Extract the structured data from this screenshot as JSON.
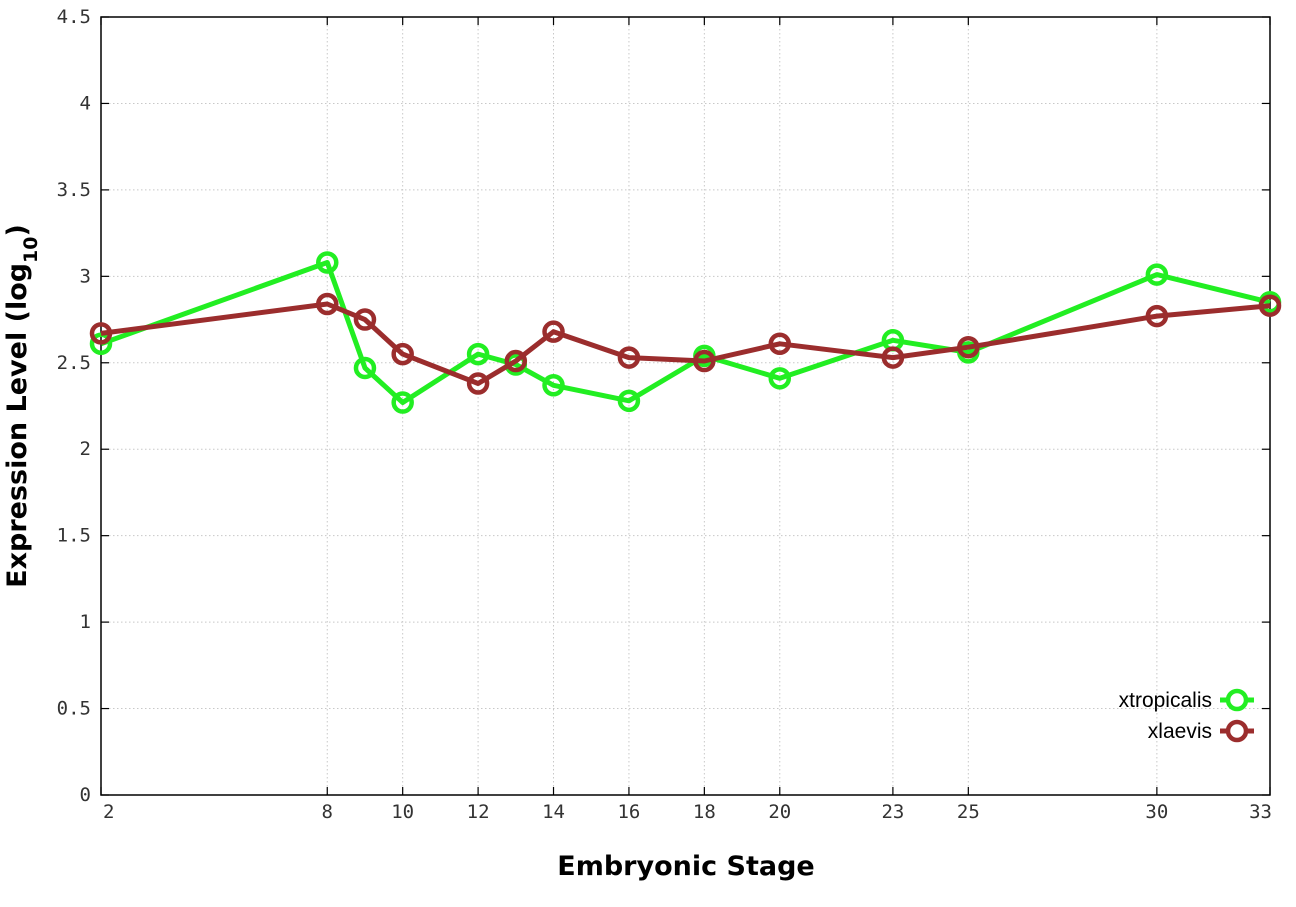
{
  "chart_data": {
    "type": "line",
    "x_ticks": [
      2,
      8,
      10,
      12,
      14,
      16,
      18,
      20,
      23,
      25,
      30,
      33
    ],
    "y_ticks": [
      "0",
      "0.5",
      "1",
      "1.5",
      "2",
      "2.5",
      "3",
      "3.5",
      "4",
      "4.5"
    ],
    "xlim": [
      2,
      33
    ],
    "ylim": [
      0,
      4.5
    ],
    "xlabel": "Embryonic Stage",
    "ylabel": "Expression Level (log",
    "ylabel_sub": "10",
    "ylabel_close": ")",
    "grid": true,
    "legend_position": "bottom-right",
    "series": [
      {
        "name": "xtropicalis",
        "color": "#22ee22",
        "x": [
          2,
          8,
          9,
          10,
          12,
          13,
          14,
          16,
          18,
          20,
          23,
          25,
          30,
          33
        ],
        "y": [
          2.61,
          3.08,
          2.47,
          2.27,
          2.55,
          2.49,
          2.37,
          2.28,
          2.54,
          2.41,
          2.63,
          2.56,
          3.01,
          2.85
        ]
      },
      {
        "name": "xlaevis",
        "color": "#9b2d2d",
        "x": [
          2,
          8,
          9,
          10,
          12,
          13,
          14,
          16,
          18,
          20,
          23,
          25,
          30,
          33
        ],
        "y": [
          2.67,
          2.84,
          2.75,
          2.55,
          2.38,
          2.51,
          2.68,
          2.53,
          2.51,
          2.61,
          2.53,
          2.59,
          2.77,
          2.83
        ]
      }
    ]
  }
}
